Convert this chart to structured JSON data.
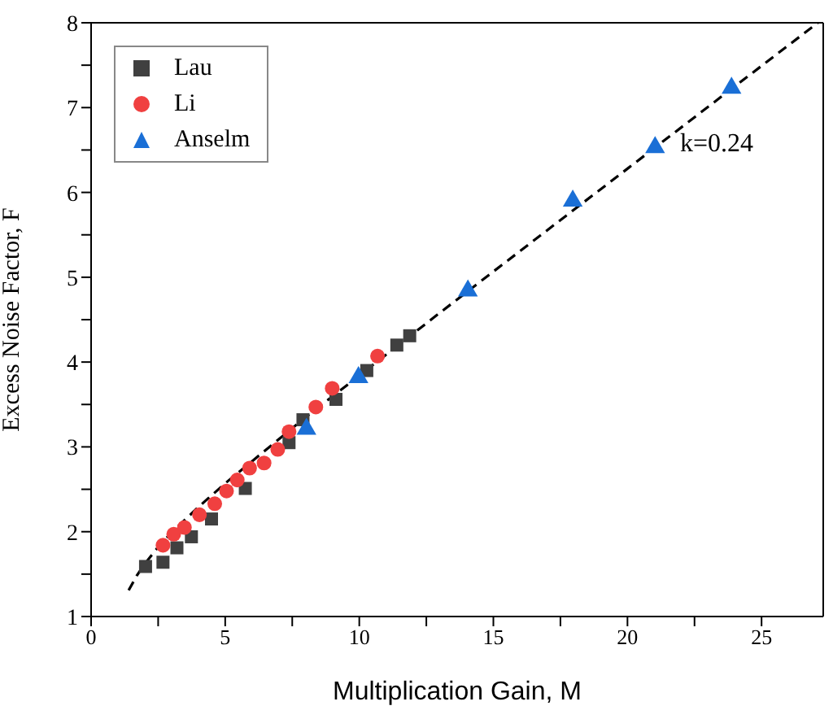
{
  "chart_data": {
    "type": "scatter",
    "xlabel": "Multiplication Gain, M",
    "ylabel": "Excess Noise Factor, F",
    "xlim": [
      0,
      27.3
    ],
    "ylim": [
      1,
      8
    ],
    "xticks": [
      0,
      {
        "value": 2.5,
        "label": null
      },
      5,
      {
        "value": 7.5,
        "label": null
      },
      10,
      {
        "value": 12.5,
        "label": null
      },
      15,
      {
        "value": 17.5,
        "label": null
      },
      20,
      {
        "value": 22.5,
        "label": null
      },
      25
    ],
    "yticks": [
      1,
      {
        "value": 1.5,
        "label": null
      },
      2,
      {
        "value": 2.5,
        "label": null
      },
      3,
      {
        "value": 3.5,
        "label": null
      },
      4,
      {
        "value": 4.5,
        "label": null
      },
      5,
      {
        "value": 5.5,
        "label": null
      },
      6,
      {
        "value": 6.5,
        "label": null
      },
      7,
      {
        "value": 7.5,
        "label": null
      },
      8
    ],
    "legend": "top left",
    "series": [
      {
        "name": "Lau",
        "color": "#404040",
        "marker": "square",
        "x": [
          2.03,
          2.68,
          3.2,
          3.74,
          4.49,
          5.75,
          7.38,
          7.9,
          9.13,
          10.28,
          11.4,
          11.88
        ],
        "values": [
          1.59,
          1.64,
          1.81,
          1.94,
          2.15,
          2.51,
          3.05,
          3.32,
          3.56,
          3.9,
          4.2,
          4.31
        ]
      },
      {
        "name": "Li",
        "color": "#f04040",
        "marker": "circle",
        "x": [
          2.68,
          3.08,
          3.48,
          4.04,
          4.61,
          5.05,
          5.45,
          5.91,
          6.45,
          6.96,
          7.38,
          8.38,
          8.99,
          10.68
        ],
        "values": [
          1.84,
          1.97,
          2.05,
          2.2,
          2.33,
          2.48,
          2.61,
          2.75,
          2.81,
          2.97,
          3.18,
          3.47,
          3.69,
          4.07
        ]
      },
      {
        "name": "Anselm",
        "color": "#1a6fd6",
        "marker": "triangle",
        "x": [
          8.03,
          9.97,
          14.05,
          17.96,
          21.03,
          23.88
        ],
        "values": [
          3.21,
          3.82,
          4.84,
          5.9,
          6.53,
          7.23
        ]
      },
      {
        "type": "line",
        "color": "#000000",
        "line_style": "dashed",
        "marker": "none",
        "x": [
          1.4,
          1.7,
          2,
          2.5,
          3,
          4,
          5,
          6,
          8,
          10,
          13,
          16,
          20,
          24,
          27.1
        ],
        "values": [
          1.31,
          1.48,
          1.62,
          1.82,
          1.99,
          2.29,
          2.57,
          2.83,
          3.35,
          3.84,
          4.58,
          5.31,
          6.28,
          7.25,
          8.0
        ]
      }
    ],
    "annotations": [
      "k=0.24"
    ]
  }
}
